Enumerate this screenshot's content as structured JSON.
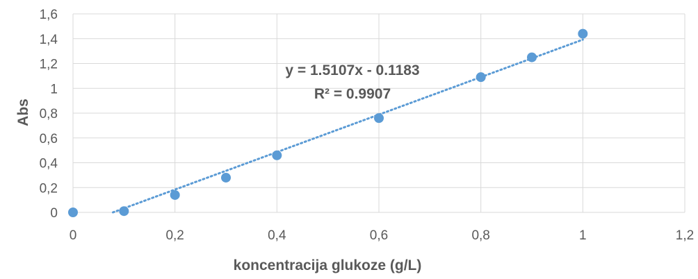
{
  "chart_data": {
    "type": "scatter",
    "xlabel": "koncentracija glukoze (g/L)",
    "ylabel": "Abs",
    "xlim": [
      0,
      1.2
    ],
    "ylim": [
      0,
      1.6
    ],
    "x_ticks": [
      "0",
      "0,2",
      "0,4",
      "0,6",
      "0,8",
      "1",
      "1,2"
    ],
    "y_ticks": [
      "0",
      "0,2",
      "0,4",
      "0,6",
      "0,8",
      "1",
      "1,2",
      "1,4",
      "1,6"
    ],
    "grid": true,
    "series": [
      {
        "x": [
          0,
          0.1,
          0.2,
          0.3,
          0.4,
          0.6,
          0.8,
          0.9,
          1.0
        ],
        "y": [
          0.0,
          0.01,
          0.14,
          0.28,
          0.46,
          0.76,
          1.09,
          1.25,
          1.44
        ]
      }
    ],
    "trendline": {
      "type": "linear",
      "slope": 1.5107,
      "intercept": -0.1183,
      "equation": "y = 1.5107x - 0.1183",
      "r_squared": "R² = 0.9907"
    },
    "colors": {
      "points": "#5b9bd5",
      "trendline": "#5b9bd5",
      "grid": "#d9d9d9",
      "text": "#595959"
    }
  }
}
